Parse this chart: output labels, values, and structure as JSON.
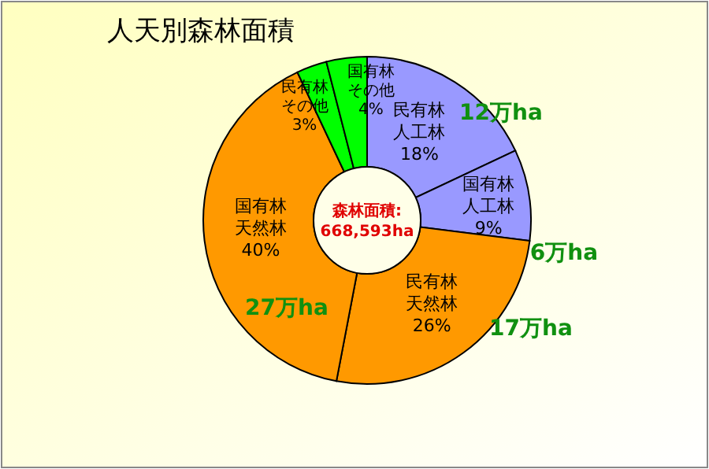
{
  "chart_data": {
    "type": "donut",
    "title": "人天別森林面積",
    "categories": [
      "民有林人工林",
      "国有林人工林",
      "民有林天然林",
      "国有林天然林",
      "民有林その他",
      "国有林その他"
    ],
    "values": [
      18,
      9,
      26,
      40,
      3,
      4
    ],
    "value_labels": [
      "18%",
      "9%",
      "26%",
      "40%",
      "3%",
      "4%"
    ],
    "colors": [
      "#9999ff",
      "#9999ff",
      "#ff9900",
      "#ff9900",
      "#00ff00",
      "#00ff00"
    ],
    "annotations": [
      "森林面積:\n668,593ha",
      "12万ha",
      "6万ha",
      "17万ha",
      "27万ha"
    ]
  }
}
